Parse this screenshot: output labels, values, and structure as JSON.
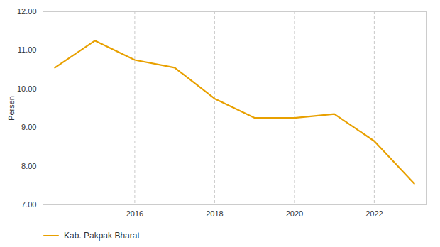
{
  "chart_data": {
    "type": "line",
    "x": [
      2014,
      2015,
      2016,
      2017,
      2018,
      2019,
      2020,
      2021,
      2022,
      2023
    ],
    "series": [
      {
        "name": "Kab. Pakpak Bharat",
        "color": "#E8A000",
        "values": [
          10.55,
          11.25,
          10.75,
          10.55,
          9.75,
          9.25,
          9.25,
          9.35,
          8.65,
          7.55
        ]
      }
    ],
    "ylabel": "Persen",
    "xlim": [
      2013.7,
      2023.3
    ],
    "xticks": [
      2016,
      2018,
      2020,
      2022
    ],
    "ylim": [
      7.0,
      12.0
    ],
    "yticks": [
      {
        "value": 7,
        "label": "7.00"
      },
      {
        "value": 8,
        "label": "8.00"
      },
      {
        "value": 9,
        "label": "9.00"
      },
      {
        "value": 10,
        "label": "10.00"
      },
      {
        "value": 11,
        "label": "11.00"
      },
      {
        "value": 12,
        "label": "12.00"
      }
    ],
    "grid": true,
    "legend": "bottom"
  }
}
